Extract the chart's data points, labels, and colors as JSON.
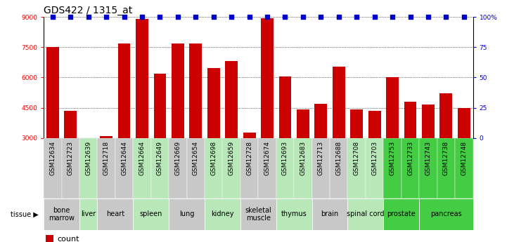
{
  "title": "GDS422 / 1315_at",
  "samples": [
    "GSM12634",
    "GSM12723",
    "GSM12639",
    "GSM12718",
    "GSM12644",
    "GSM12664",
    "GSM12649",
    "GSM12669",
    "GSM12654",
    "GSM12698",
    "GSM12659",
    "GSM12728",
    "GSM12674",
    "GSM12693",
    "GSM12683",
    "GSM12713",
    "GSM12688",
    "GSM12708",
    "GSM12703",
    "GSM12753",
    "GSM12733",
    "GSM12743",
    "GSM12738",
    "GSM12748"
  ],
  "counts": [
    7500,
    4350,
    3000,
    3100,
    7700,
    8900,
    6200,
    7700,
    7700,
    6450,
    6800,
    3250,
    8950,
    6050,
    4400,
    4700,
    6550,
    4400,
    4350,
    6000,
    4800,
    4650,
    5200,
    4500
  ],
  "tissues": [
    {
      "name": "bone\nmarrow",
      "start": 0,
      "end": 2,
      "color": "#c8c8c8"
    },
    {
      "name": "liver",
      "start": 2,
      "end": 3,
      "color": "#b8e8b8"
    },
    {
      "name": "heart",
      "start": 3,
      "end": 5,
      "color": "#c8c8c8"
    },
    {
      "name": "spleen",
      "start": 5,
      "end": 7,
      "color": "#b8e8b8"
    },
    {
      "name": "lung",
      "start": 7,
      "end": 9,
      "color": "#c8c8c8"
    },
    {
      "name": "kidney",
      "start": 9,
      "end": 11,
      "color": "#b8e8b8"
    },
    {
      "name": "skeletal\nmuscle",
      "start": 11,
      "end": 13,
      "color": "#c8c8c8"
    },
    {
      "name": "thymus",
      "start": 13,
      "end": 15,
      "color": "#b8e8b8"
    },
    {
      "name": "brain",
      "start": 15,
      "end": 17,
      "color": "#c8c8c8"
    },
    {
      "name": "spinal cord",
      "start": 17,
      "end": 19,
      "color": "#b8e8b8"
    },
    {
      "name": "prostate",
      "start": 19,
      "end": 21,
      "color": "#44cc44"
    },
    {
      "name": "pancreas",
      "start": 21,
      "end": 24,
      "color": "#44cc44"
    }
  ],
  "sample_bg_colors": [
    "#c8c8c8",
    "#c8c8c8",
    "#b8e8b8",
    "#c8c8c8",
    "#c8c8c8",
    "#b8e8b8",
    "#b8e8b8",
    "#c8c8c8",
    "#c8c8c8",
    "#b8e8b8",
    "#b8e8b8",
    "#c8c8c8",
    "#c8c8c8",
    "#b8e8b8",
    "#b8e8b8",
    "#c8c8c8",
    "#c8c8c8",
    "#b8e8b8",
    "#b8e8b8",
    "#44cc44",
    "#44cc44",
    "#44cc44",
    "#44cc44",
    "#44cc44"
  ],
  "ylim_left": [
    3000,
    9000
  ],
  "ylim_right": [
    0,
    100
  ],
  "yticks_left": [
    3000,
    4500,
    6000,
    7500,
    9000
  ],
  "yticks_right": [
    0,
    25,
    50,
    75,
    100
  ],
  "bar_color": "#cc0000",
  "percentile_color": "#0000cc",
  "bg_color": "#ffffff",
  "title_fontsize": 10,
  "tick_fontsize": 6.5,
  "tissue_fontsize": 7,
  "legend_fontsize": 8
}
